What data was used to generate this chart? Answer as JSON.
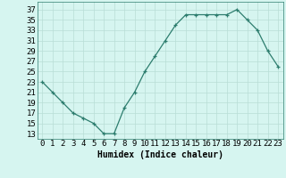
{
  "x": [
    0,
    1,
    2,
    3,
    4,
    5,
    6,
    7,
    8,
    9,
    10,
    11,
    12,
    13,
    14,
    15,
    16,
    17,
    18,
    19,
    20,
    21,
    22,
    23
  ],
  "y": [
    23,
    21,
    19,
    17,
    16,
    15,
    13,
    13,
    18,
    21,
    25,
    28,
    31,
    34,
    36,
    36,
    36,
    36,
    36,
    37,
    35,
    33,
    29,
    26
  ],
  "line_color": "#2d7d6e",
  "marker": "+",
  "bg_color": "#d6f5f0",
  "grid_color": "#b8ddd6",
  "xlabel": "Humidex (Indice chaleur)",
  "xlabel_fontsize": 7,
  "ylabel_ticks": [
    13,
    15,
    17,
    19,
    21,
    23,
    25,
    27,
    29,
    31,
    33,
    35,
    37
  ],
  "xlim": [
    -0.5,
    23.5
  ],
  "ylim": [
    12,
    38.5
  ],
  "tick_fontsize": 6.5
}
